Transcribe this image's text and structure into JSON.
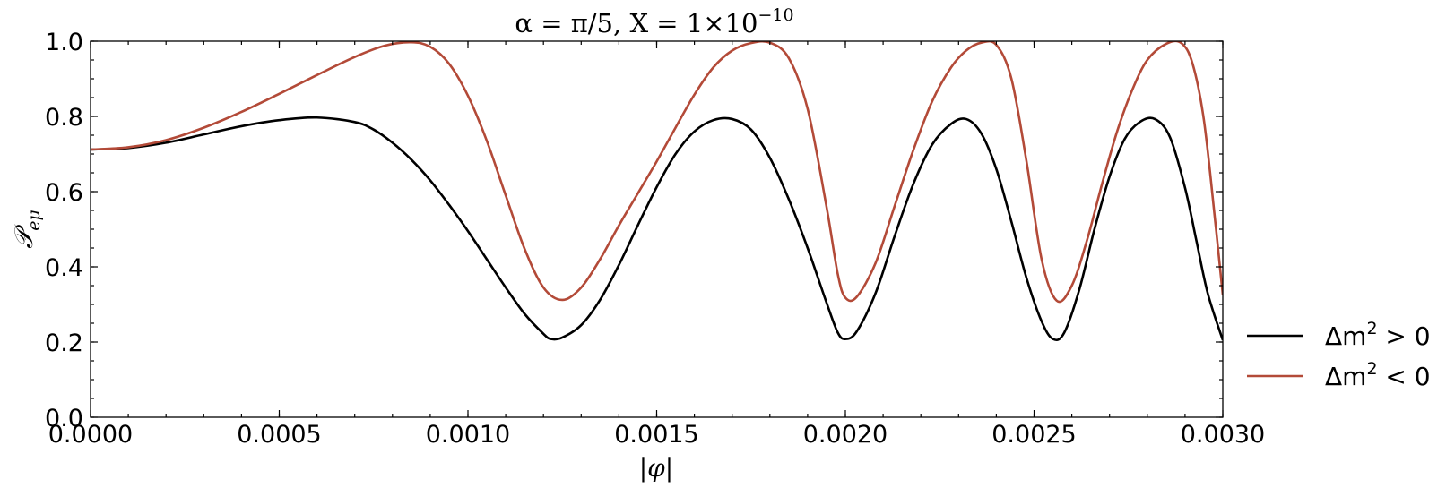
{
  "chart_data": {
    "type": "line",
    "title": "α = π/5, X = 1×10⁻¹⁰",
    "title_parts": {
      "lhs": "α = π/5, X = 1×10",
      "exp": "−10"
    },
    "xlabel": "|φ|",
    "ylabel": "𝒫eμ",
    "ylabel_parts": {
      "main": "𝒫",
      "sub": "eμ"
    },
    "xlim": [
      0,
      0.003
    ],
    "ylim": [
      0,
      1.0
    ],
    "x_ticks": [
      0.0,
      0.0005,
      0.001,
      0.0015,
      0.002,
      0.0025,
      0.003
    ],
    "x_tick_labels": [
      "0.0000",
      "0.0005",
      "0.0010",
      "0.0015",
      "0.0020",
      "0.0025",
      "0.0030"
    ],
    "y_ticks": [
      0.0,
      0.2,
      0.4,
      0.6,
      0.8,
      1.0
    ],
    "y_tick_labels": [
      "0.0",
      "0.2",
      "0.4",
      "0.6",
      "0.8",
      "1.0"
    ],
    "grid": false,
    "legend_placement": "right-outside",
    "series": [
      {
        "name": "Δm² > 0",
        "name_parts": {
          "pre": "Δm",
          "sup": "2",
          "post": " > 0"
        },
        "color": "#000000",
        "points": [
          [
            0.0,
            0.712
          ],
          [
            0.0001,
            0.716
          ],
          [
            0.0002,
            0.73
          ],
          [
            0.0003,
            0.752
          ],
          [
            0.0004,
            0.774
          ],
          [
            0.0005,
            0.79
          ],
          [
            0.0006,
            0.797
          ],
          [
            0.0007,
            0.785
          ],
          [
            0.00075,
            0.765
          ],
          [
            0.0008,
            0.73
          ],
          [
            0.00085,
            0.685
          ],
          [
            0.0009,
            0.63
          ],
          [
            0.00095,
            0.565
          ],
          [
            0.001,
            0.495
          ],
          [
            0.00105,
            0.42
          ],
          [
            0.0011,
            0.345
          ],
          [
            0.00115,
            0.275
          ],
          [
            0.0012,
            0.222
          ],
          [
            0.00122,
            0.208
          ],
          [
            0.00125,
            0.212
          ],
          [
            0.0013,
            0.245
          ],
          [
            0.00135,
            0.312
          ],
          [
            0.0014,
            0.405
          ],
          [
            0.00145,
            0.51
          ],
          [
            0.0015,
            0.612
          ],
          [
            0.00155,
            0.7
          ],
          [
            0.0016,
            0.76
          ],
          [
            0.00165,
            0.79
          ],
          [
            0.0017,
            0.793
          ],
          [
            0.00175,
            0.765
          ],
          [
            0.0018,
            0.69
          ],
          [
            0.00185,
            0.58
          ],
          [
            0.0019,
            0.45
          ],
          [
            0.00195,
            0.305
          ],
          [
            0.00198,
            0.225
          ],
          [
            0.002,
            0.208
          ],
          [
            0.00203,
            0.228
          ],
          [
            0.00208,
            0.33
          ],
          [
            0.00213,
            0.48
          ],
          [
            0.00218,
            0.62
          ],
          [
            0.00223,
            0.725
          ],
          [
            0.00228,
            0.78
          ],
          [
            0.00232,
            0.793
          ],
          [
            0.00236,
            0.755
          ],
          [
            0.0024,
            0.66
          ],
          [
            0.00244,
            0.52
          ],
          [
            0.00248,
            0.37
          ],
          [
            0.00252,
            0.255
          ],
          [
            0.00255,
            0.208
          ],
          [
            0.00258,
            0.225
          ],
          [
            0.00262,
            0.34
          ],
          [
            0.00266,
            0.5
          ],
          [
            0.0027,
            0.64
          ],
          [
            0.00274,
            0.74
          ],
          [
            0.00278,
            0.785
          ],
          [
            0.00282,
            0.793
          ],
          [
            0.00286,
            0.745
          ],
          [
            0.0029,
            0.61
          ],
          [
            0.00293,
            0.47
          ],
          [
            0.00296,
            0.33
          ],
          [
            0.003,
            0.205
          ]
        ]
      },
      {
        "name": "Δm² < 0",
        "name_parts": {
          "pre": "Δm",
          "sup": "2",
          "post": " < 0"
        },
        "color": "#b34a38",
        "points": [
          [
            0.0,
            0.712
          ],
          [
            0.0001,
            0.718
          ],
          [
            0.0002,
            0.737
          ],
          [
            0.0003,
            0.77
          ],
          [
            0.0004,
            0.812
          ],
          [
            0.0005,
            0.86
          ],
          [
            0.0006,
            0.91
          ],
          [
            0.0007,
            0.958
          ],
          [
            0.00078,
            0.988
          ],
          [
            0.00085,
            0.997
          ],
          [
            0.0009,
            0.985
          ],
          [
            0.00095,
            0.94
          ],
          [
            0.001,
            0.855
          ],
          [
            0.00105,
            0.735
          ],
          [
            0.0011,
            0.59
          ],
          [
            0.00115,
            0.448
          ],
          [
            0.0012,
            0.345
          ],
          [
            0.00125,
            0.312
          ],
          [
            0.0013,
            0.345
          ],
          [
            0.00135,
            0.42
          ],
          [
            0.0014,
            0.51
          ],
          [
            0.00145,
            0.595
          ],
          [
            0.0015,
            0.68
          ],
          [
            0.00155,
            0.77
          ],
          [
            0.0016,
            0.858
          ],
          [
            0.00165,
            0.93
          ],
          [
            0.0017,
            0.975
          ],
          [
            0.00175,
            0.995
          ],
          [
            0.0018,
            0.996
          ],
          [
            0.00185,
            0.955
          ],
          [
            0.0019,
            0.82
          ],
          [
            0.00195,
            0.56
          ],
          [
            0.00198,
            0.38
          ],
          [
            0.002,
            0.318
          ],
          [
            0.00203,
            0.32
          ],
          [
            0.00208,
            0.41
          ],
          [
            0.00213,
            0.56
          ],
          [
            0.00218,
            0.71
          ],
          [
            0.00223,
            0.84
          ],
          [
            0.00228,
            0.93
          ],
          [
            0.00232,
            0.975
          ],
          [
            0.00236,
            0.996
          ],
          [
            0.0024,
            0.99
          ],
          [
            0.00244,
            0.9
          ],
          [
            0.00248,
            0.68
          ],
          [
            0.00252,
            0.42
          ],
          [
            0.00256,
            0.31
          ],
          [
            0.0026,
            0.35
          ],
          [
            0.00264,
            0.47
          ],
          [
            0.00268,
            0.62
          ],
          [
            0.00272,
            0.76
          ],
          [
            0.00276,
            0.87
          ],
          [
            0.0028,
            0.95
          ],
          [
            0.00285,
            0.993
          ],
          [
            0.00289,
            0.995
          ],
          [
            0.00292,
            0.94
          ],
          [
            0.00295,
            0.79
          ],
          [
            0.00298,
            0.52
          ],
          [
            0.003,
            0.325
          ]
        ]
      }
    ]
  }
}
